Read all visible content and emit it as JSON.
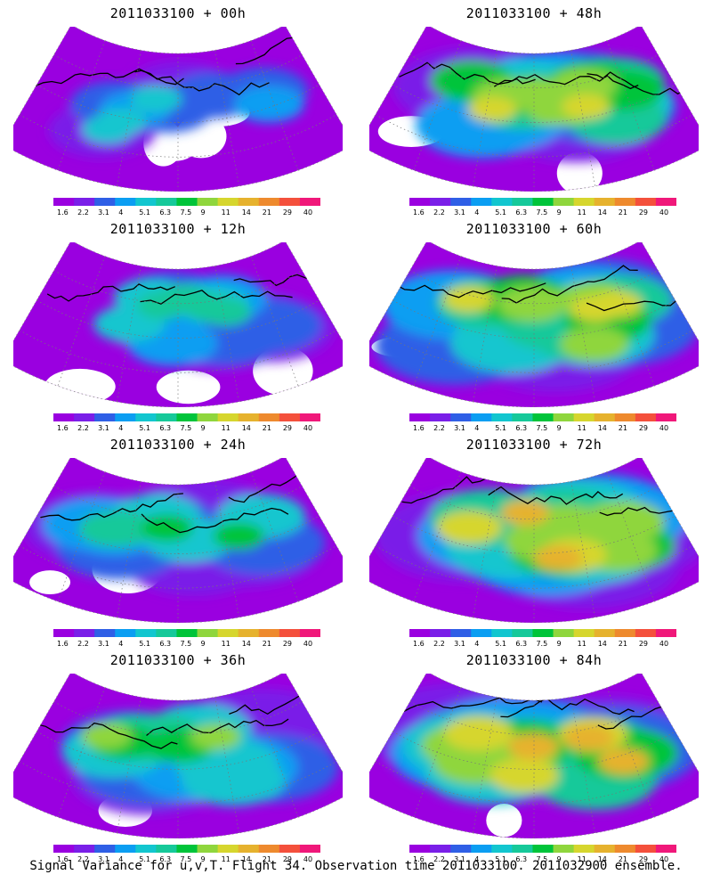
{
  "panels": [
    {
      "title": "2011033100 + 00h",
      "level": 0.25,
      "col": 0,
      "row": 0
    },
    {
      "title": "2011033100 + 12h",
      "level": 0.38,
      "col": 0,
      "row": 1
    },
    {
      "title": "2011033100 + 24h",
      "level": 0.48,
      "col": 0,
      "row": 2
    },
    {
      "title": "2011033100 + 36h",
      "level": 0.56,
      "col": 0,
      "row": 3
    },
    {
      "title": "2011033100 + 48h",
      "level": 0.62,
      "col": 1,
      "row": 0
    },
    {
      "title": "2011033100 + 60h",
      "level": 0.68,
      "col": 1,
      "row": 1
    },
    {
      "title": "2011033100 + 72h",
      "level": 0.74,
      "col": 1,
      "row": 2
    },
    {
      "title": "2011033100 + 84h",
      "level": 0.8,
      "col": 1,
      "row": 3
    }
  ],
  "colorbar": {
    "labels": [
      "1.6",
      "2.2",
      "3.1",
      "4",
      "5.1",
      "6.3",
      "7.5",
      "9",
      "11",
      "14",
      "21",
      "29",
      "40"
    ],
    "colors": [
      "#9a00e0",
      "#7a1fe8",
      "#2f5fe6",
      "#0b9ef2",
      "#12c6cf",
      "#16c99a",
      "#00c43a",
      "#8fd63d",
      "#d6d62e",
      "#e6b22e",
      "#ee8a2e",
      "#f4503c",
      "#f0187a"
    ]
  },
  "footer": "Signal Variance for u,v,T. Flight 34. Observation time 2011033100. 2011032900 ensemble."
}
